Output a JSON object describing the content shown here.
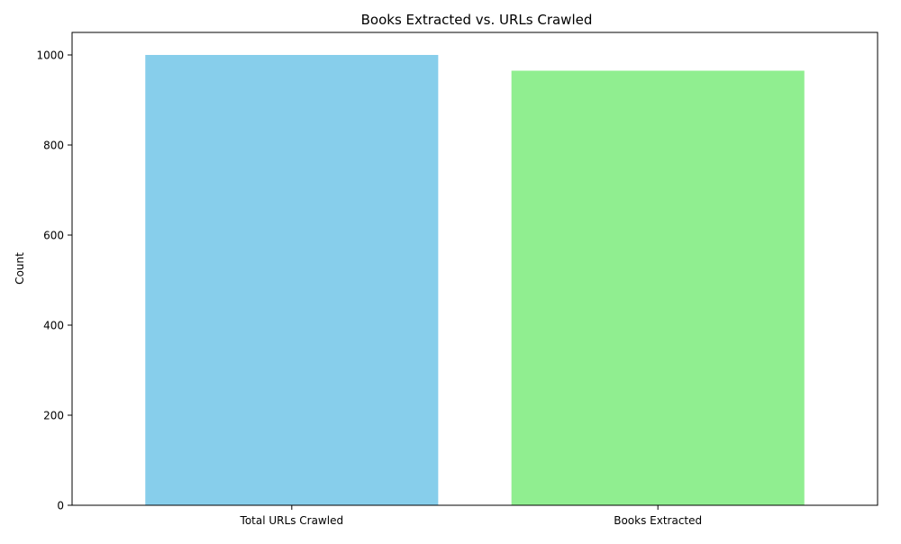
{
  "chart_data": {
    "type": "bar",
    "title": "Books Extracted vs. URLs Crawled",
    "xlabel": "",
    "ylabel": "Count",
    "categories": [
      "Total URLs Crawled",
      "Books Extracted"
    ],
    "values": [
      1000,
      965
    ],
    "colors": [
      "#87ceeb",
      "#90ee90"
    ],
    "ylim": [
      0,
      1050
    ],
    "yticks": [
      0,
      200,
      400,
      600,
      800,
      1000
    ],
    "grid": false,
    "legend": "none"
  }
}
